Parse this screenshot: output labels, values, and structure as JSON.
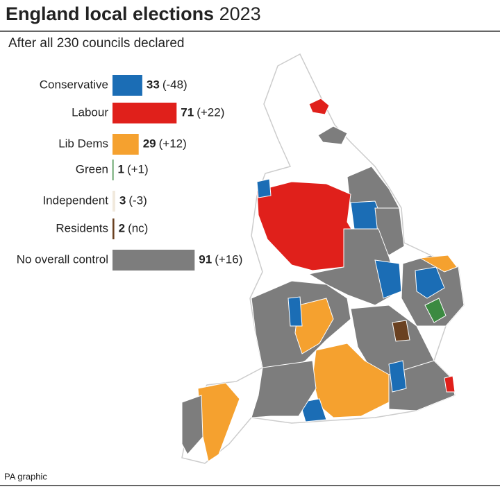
{
  "chart_data": {
    "type": "bar",
    "orientation": "horizontal",
    "title": "England local elections",
    "title_year": "2023",
    "subtitle": "After all 230 councils declared",
    "categories": [
      "Conservative",
      "Labour",
      "Lib Dems",
      "Green",
      "Independent",
      "Residents",
      "No overall control"
    ],
    "values": [
      33,
      71,
      29,
      1,
      3,
      2,
      91
    ],
    "change_labels": [
      "(-48)",
      "(+22)",
      "(+12)",
      "(+1)",
      "(-3)",
      "(nc)",
      "(+16)"
    ],
    "colors": [
      "#1b6db5",
      "#e0201b",
      "#f5a12f",
      "#3b8a41",
      "#f1e9dc",
      "#6a4121",
      "#7d7d7d"
    ],
    "source": "PA graphic"
  }
}
